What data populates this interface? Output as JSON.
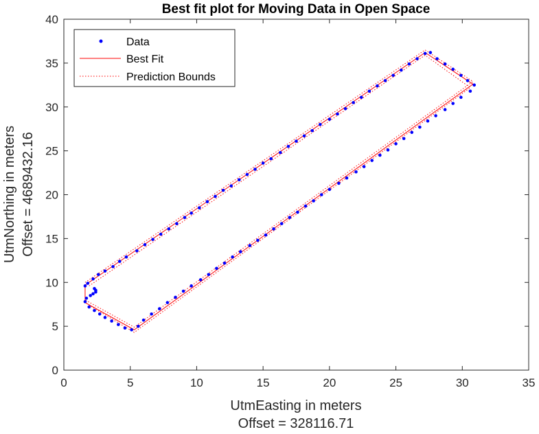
{
  "chart_data": {
    "type": "line",
    "title": "Best fit plot for Moving Data in Open Space",
    "xlabel": "UtmEasting in meters",
    "xlabel_offset": "Offset = 328116.71",
    "ylabel": "UtmNorthing in meters",
    "ylabel_offset": "Offset = 4689432.16",
    "xlim": [
      0,
      35
    ],
    "ylim": [
      0,
      40
    ],
    "xticks": [
      0,
      5,
      10,
      15,
      20,
      25,
      30,
      35
    ],
    "yticks": [
      0,
      5,
      10,
      15,
      20,
      25,
      30,
      35,
      40
    ],
    "grid": false,
    "legend_position": "top-left",
    "series": [
      {
        "name": "Data",
        "kind": "points",
        "color": "#0000ff",
        "x": [
          1.6,
          1.8,
          2.2,
          2.6,
          3.1,
          3.7,
          4.2,
          4.7,
          5.5,
          6.1,
          6.7,
          7.3,
          7.9,
          8.5,
          9.1,
          9.6,
          10.2,
          10.8,
          11.4,
          12.0,
          12.6,
          13.2,
          13.8,
          14.4,
          15.0,
          15.6,
          16.3,
          16.9,
          17.5,
          18.1,
          18.7,
          19.3,
          20.0,
          20.6,
          21.2,
          21.8,
          22.4,
          23.0,
          23.6,
          24.2,
          24.8,
          25.4,
          26.0,
          26.6,
          27.2,
          27.6,
          28.1,
          28.7,
          29.3,
          29.9,
          30.4,
          30.9,
          30.6,
          29.9,
          29.3,
          28.7,
          28.0,
          27.4,
          26.8,
          26.2,
          25.6,
          25.0,
          24.4,
          23.8,
          23.2,
          22.6,
          22.0,
          21.3,
          20.7,
          20.0,
          19.4,
          18.8,
          18.2,
          17.6,
          17.0,
          16.4,
          15.8,
          15.2,
          14.6,
          14.0,
          13.3,
          12.7,
          12.1,
          11.5,
          10.9,
          10.3,
          9.6,
          9.0,
          8.4,
          7.8,
          7.2,
          6.6,
          6.0,
          5.6,
          5.1,
          4.6,
          4.1,
          3.6,
          3.1,
          2.7,
          2.3,
          1.9,
          1.6,
          1.7,
          2.0,
          2.2,
          2.4,
          2.4,
          2.3
        ],
        "y": [
          9.6,
          9.9,
          10.4,
          10.9,
          11.3,
          11.8,
          12.4,
          12.9,
          13.6,
          14.3,
          14.9,
          15.5,
          16.1,
          16.7,
          17.4,
          17.9,
          18.5,
          19.2,
          19.8,
          20.5,
          21.0,
          21.7,
          22.3,
          22.9,
          23.6,
          24.1,
          24.8,
          25.5,
          26.1,
          26.7,
          27.3,
          28.0,
          28.6,
          29.2,
          29.8,
          30.5,
          31.1,
          31.8,
          32.4,
          33.0,
          33.6,
          34.2,
          34.9,
          35.5,
          36.1,
          36.2,
          35.5,
          34.9,
          34.3,
          33.6,
          33.0,
          32.5,
          31.8,
          31.1,
          30.4,
          29.7,
          29.0,
          28.4,
          27.7,
          27.1,
          26.4,
          25.8,
          25.1,
          24.5,
          23.9,
          23.2,
          22.6,
          21.9,
          21.3,
          20.6,
          20.0,
          19.3,
          18.7,
          18.0,
          17.4,
          16.7,
          16.1,
          15.4,
          14.8,
          14.2,
          13.5,
          12.9,
          12.2,
          11.6,
          10.9,
          10.3,
          9.6,
          9.0,
          8.3,
          7.7,
          7.0,
          6.4,
          5.7,
          5.0,
          4.6,
          4.8,
          5.2,
          5.6,
          6.0,
          6.4,
          6.8,
          7.2,
          7.8,
          8.2,
          8.5,
          8.7,
          8.9,
          9.1,
          9.3
        ]
      },
      {
        "name": "Best Fit",
        "kind": "line",
        "color": "#ff0000",
        "dash": "solid",
        "x": [
          1.6,
          27.2,
          30.8,
          5.3,
          1.6,
          1.6
        ],
        "y": [
          9.7,
          36.2,
          32.6,
          4.6,
          7.7,
          9.7
        ]
      },
      {
        "name": "Prediction Bounds",
        "kind": "line",
        "color": "#ff0000",
        "dash": "dotted",
        "x": [
          1.6,
          27.2,
          30.8,
          5.3,
          1.6
        ],
        "y": [
          10.0,
          36.5,
          32.9,
          4.9,
          8.0
        ]
      },
      {
        "name": "",
        "kind": "line",
        "color": "#ff0000",
        "dash": "dotted",
        "x": [
          1.9,
          27.2,
          30.6,
          5.3,
          1.9
        ],
        "y": [
          9.6,
          35.9,
          32.2,
          4.3,
          7.4
        ]
      }
    ]
  }
}
